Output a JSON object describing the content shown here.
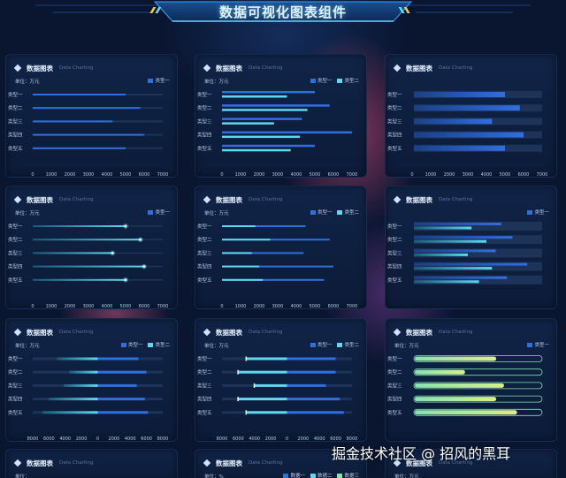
{
  "page_title": "数据可视化图表组件",
  "watermark": "掘金技术社区 @ 招风的黑耳",
  "card_title": "数据图表",
  "card_subtitle": "Data Charting",
  "colors": {
    "blue": "#2f6fe0",
    "cyan": "#5fd8f0",
    "green": "#86e3b0",
    "yellow": "#d8f08a",
    "track": "#1d3358"
  },
  "chart_data": [
    {
      "id": 1,
      "type": "bar",
      "unit": "单位：万元",
      "categories": [
        "类型一",
        "类型二",
        "类型三",
        "类型四",
        "类型五"
      ],
      "legend": [
        "类型一"
      ],
      "series": [
        {
          "name": "类型一",
          "values": [
            5000,
            5800,
            4300,
            6000,
            5000
          ]
        }
      ],
      "xlim": [
        0,
        7000
      ],
      "xticks": [
        "0",
        "1000",
        "2000",
        "3000",
        "4000",
        "5000",
        "6000",
        "7000"
      ],
      "style": "thin-track"
    },
    {
      "id": 2,
      "type": "bar",
      "unit": "单位：万元",
      "categories": [
        "类型一",
        "类型二",
        "类型三",
        "类型四",
        "类型五"
      ],
      "legend": [
        "类型一",
        "类型二"
      ],
      "series": [
        {
          "name": "类型一",
          "values": [
            5000,
            5800,
            4300,
            7000,
            5000
          ]
        },
        {
          "name": "类型二",
          "values": [
            3500,
            4600,
            2800,
            4200,
            3700
          ]
        }
      ],
      "xlim": [
        0,
        7000
      ],
      "xticks": [
        "0",
        "1000",
        "2000",
        "3000",
        "4000",
        "5000",
        "6000",
        "7000"
      ],
      "style": "grouped"
    },
    {
      "id": 3,
      "type": "bar",
      "unit": "",
      "categories": [
        "类型一",
        "类型二",
        "类型三",
        "类型四",
        "类型五"
      ],
      "legend": [],
      "series": [
        {
          "name": "",
          "values": [
            5000,
            5800,
            4300,
            6000,
            5000
          ]
        }
      ],
      "xlim": [
        0,
        7000
      ],
      "xticks": [
        "0",
        "1000",
        "2000",
        "3000",
        "4000",
        "5000",
        "6000",
        "7000"
      ],
      "style": "wide-track"
    },
    {
      "id": 4,
      "type": "bar",
      "unit": "单位：万元",
      "categories": [
        "类型一",
        "类型二",
        "类型三",
        "类型四",
        "类型五"
      ],
      "legend": [
        "类型一"
      ],
      "series": [
        {
          "name": "类型一",
          "values": [
            5000,
            5800,
            4300,
            6000,
            5000
          ]
        }
      ],
      "xlim": [
        0,
        7000
      ],
      "xticks": [
        "0",
        "1000",
        "2000",
        "3000",
        "4000",
        "5000",
        "6000",
        "7000"
      ],
      "style": "glow"
    },
    {
      "id": 5,
      "type": "bar",
      "unit": "单位：万元",
      "categories": [
        "类型一",
        "类型二",
        "类型三",
        "类型四",
        "类型五"
      ],
      "legend": [
        "类型一",
        "类型二"
      ],
      "series": [
        {
          "name": "类型一",
          "values": [
            4500,
            5800,
            4400,
            6000,
            5500
          ]
        },
        {
          "name": "类型二",
          "values": [
            1800,
            2600,
            1600,
            2000,
            2200
          ]
        }
      ],
      "xlim": [
        0,
        7000
      ],
      "xticks": [
        "0",
        "1000",
        "2000",
        "3000",
        "4000",
        "5000",
        "6000",
        "7000"
      ],
      "style": "overlay"
    },
    {
      "id": 6,
      "type": "bar",
      "unit": "",
      "categories": [
        "类型一",
        "类型二",
        "类型三",
        "类型四",
        "类型五"
      ],
      "legend": [
        "类型一"
      ],
      "series": [
        {
          "name": "类型一",
          "values": [
            4800,
            5400,
            4500,
            6200,
            5100
          ]
        },
        {
          "name": "",
          "values": [
            3200,
            4000,
            3000,
            4300,
            3600
          ]
        }
      ],
      "xlim": [
        0,
        7000
      ],
      "xticks": [],
      "style": "wide-grouped"
    },
    {
      "id": 7,
      "type": "bar",
      "unit": "单位：万元",
      "categories": [
        "类型一",
        "类型二",
        "类型三",
        "类型四",
        "类型五"
      ],
      "legend": [
        "类型一",
        "类型二"
      ],
      "series": [
        {
          "name": "类型一",
          "values": [
            -5000,
            -3500,
            -4200,
            -6000,
            -6800
          ]
        },
        {
          "name": "类型二",
          "values": [
            5000,
            6000,
            4800,
            5800,
            6200
          ]
        }
      ],
      "xlim": [
        -8000,
        8000
      ],
      "xticks": [
        "8000",
        "6000",
        "4000",
        "2000",
        "0",
        "2000",
        "4000",
        "6000",
        "8000"
      ],
      "style": "diverging"
    },
    {
      "id": 8,
      "type": "bar",
      "unit": "单位：万元",
      "categories": [
        "类型一",
        "类型二",
        "类型三",
        "类型四",
        "类型五"
      ],
      "legend": [
        "类型一",
        "类型二"
      ],
      "series": [
        {
          "name": "类型一",
          "values": [
            -5000,
            -6000,
            -4000,
            -6000,
            -5000
          ]
        },
        {
          "name": "类型二",
          "values": [
            6000,
            6000,
            4800,
            6500,
            7000
          ]
        }
      ],
      "xlim": [
        -8000,
        8000
      ],
      "xticks": [
        "8000",
        "6000",
        "4000",
        "2000",
        "0",
        "2000",
        "4000",
        "6000",
        "8000"
      ],
      "style": "diverging-split"
    },
    {
      "id": 9,
      "type": "bar",
      "unit": "单位：万元",
      "categories": [
        "类型一",
        "类型二",
        "类型三",
        "类型四",
        "类型五"
      ],
      "legend": [
        "类型一"
      ],
      "series": [
        {
          "name": "类型一",
          "values": [
            64,
            40,
            70,
            64,
            80
          ]
        }
      ],
      "xlim": [
        0,
        100
      ],
      "xticks": [],
      "style": "capsule"
    },
    {
      "id": 10,
      "type": "bar",
      "unit": "单位：",
      "categories": [],
      "legend": [],
      "series": [],
      "style": "cut"
    },
    {
      "id": 11,
      "type": "bar",
      "unit": "单位：%",
      "categories": [],
      "legend": [
        "数据一",
        "数据二",
        "数据三"
      ],
      "series": [],
      "style": "cut"
    },
    {
      "id": 12,
      "type": "bar",
      "unit": "单位：万元",
      "categories": [],
      "legend": [],
      "series": [],
      "style": "cut"
    }
  ]
}
